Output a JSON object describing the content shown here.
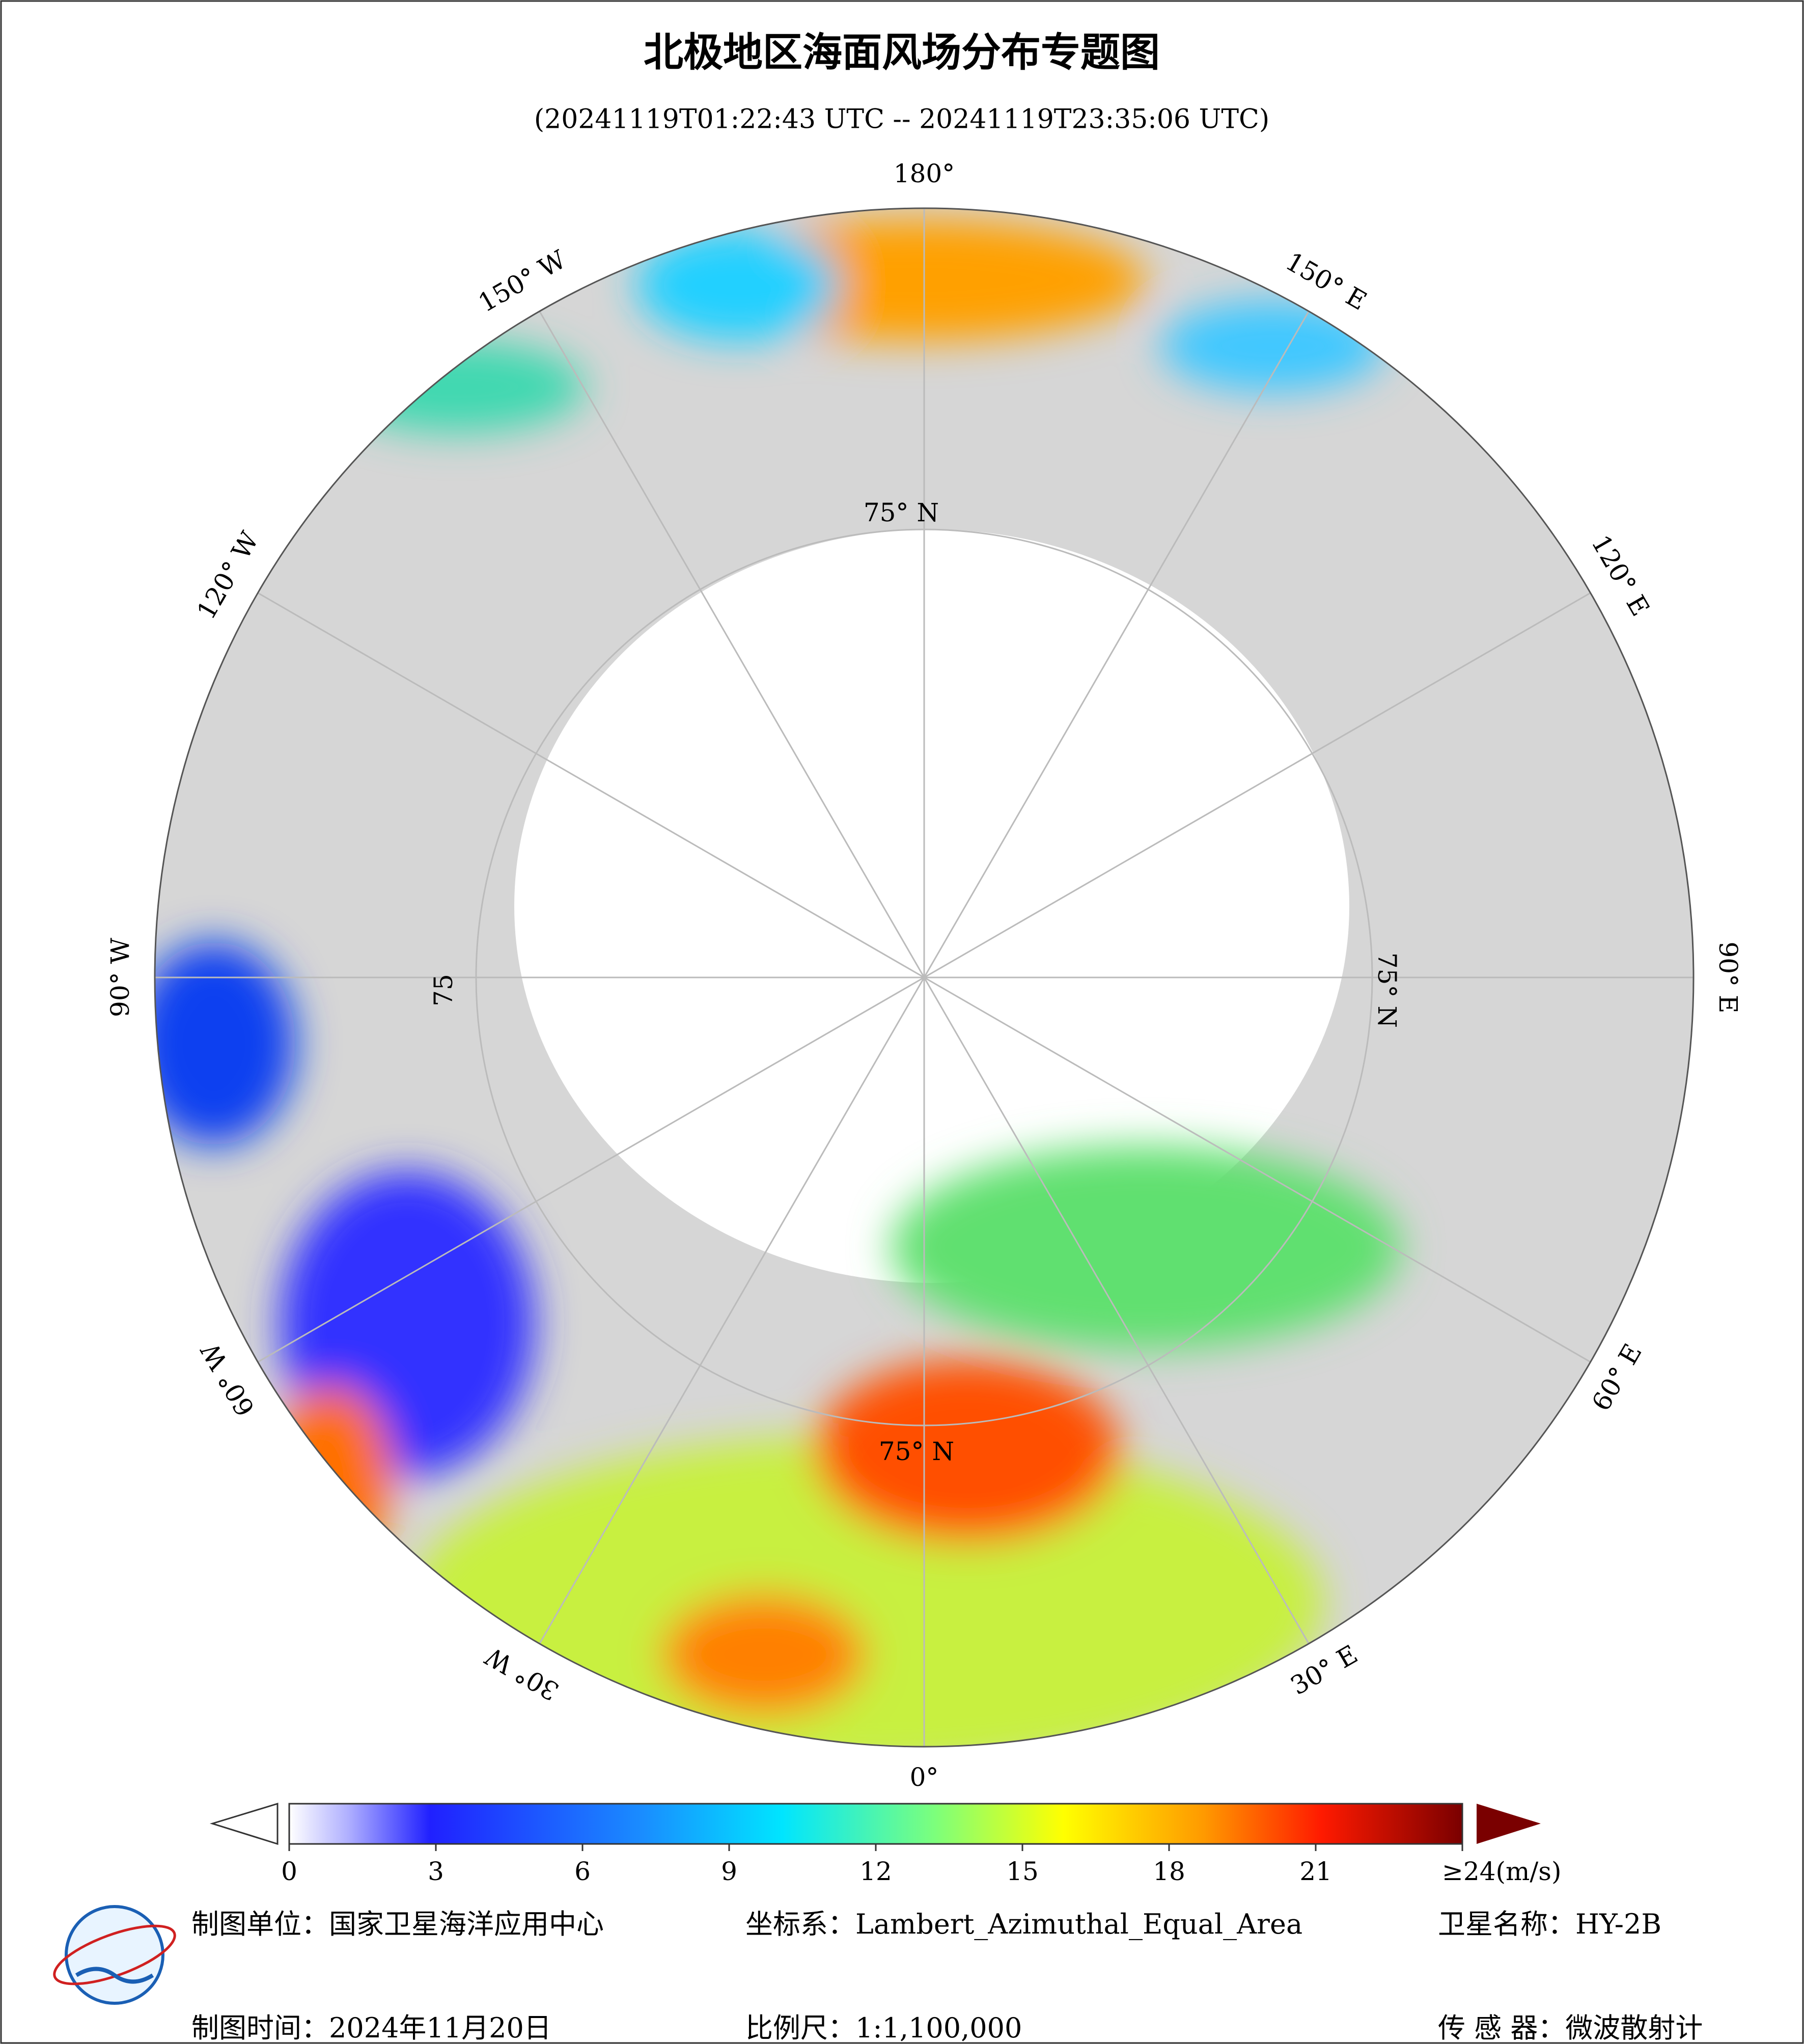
{
  "title": "北极地区海面风场分布专题图",
  "subtitle": "(20241119T01:22:43 UTC -- 20241119T23:35:06 UTC)",
  "map": {
    "lon_labels": [
      "180°",
      "150° E",
      "120° E",
      "90° E",
      "60° E",
      "30° E",
      "0°",
      "30° W",
      "60° W",
      "90° W",
      "120° W",
      "150° W"
    ],
    "lat_labels": [
      "75° N",
      "75° N",
      "75° N",
      "75"
    ]
  },
  "colorbar": {
    "range": [
      0,
      24
    ],
    "ticks": [
      0,
      3,
      6,
      9,
      12,
      15,
      18,
      21,
      {
        "value": 24,
        "label": "≥24(m/s)"
      }
    ]
  },
  "footer": {
    "unit": "制图单位：国家卫星海洋应用中心",
    "crs": "坐标系：Lambert_Azimuthal_Equal_Area",
    "satellite": "卫星名称：HY-2B",
    "date": "制图时间：2024年11月20日",
    "scale": "比例尺：1:1,100,000",
    "sensor": "传 感 器：微波散射计"
  }
}
